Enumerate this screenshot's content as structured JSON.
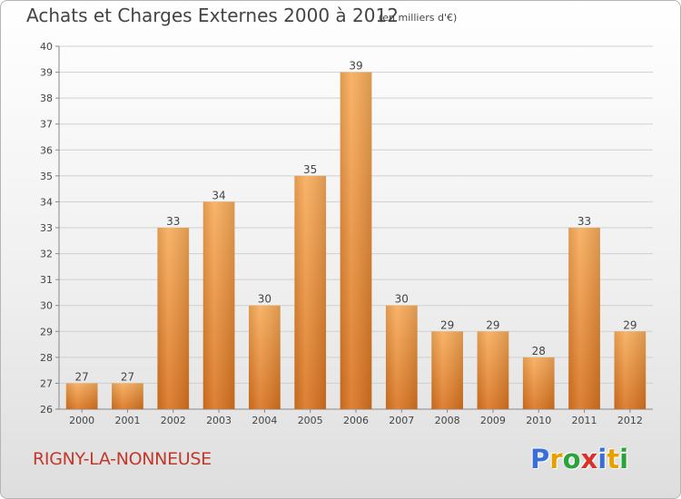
{
  "title": "Achats et Charges Externes 2000 à 2012",
  "subtitle": "(en milliers d'€)",
  "commune": "RIGNY-LA-NONNEUSE",
  "logo": {
    "letters": [
      "P",
      "r",
      "o",
      "x",
      "i",
      "t",
      "i"
    ],
    "colors": [
      "#3a6fd8",
      "#e6a100",
      "#2aa33a",
      "#d8322b",
      "#3a6fd8",
      "#e6a100",
      "#2aa33a"
    ]
  },
  "chart_data": {
    "type": "bar",
    "categories": [
      "2000",
      "2001",
      "2002",
      "2003",
      "2004",
      "2005",
      "2006",
      "2007",
      "2008",
      "2009",
      "2010",
      "2011",
      "2012"
    ],
    "values": [
      27,
      27,
      33,
      34,
      30,
      35,
      39,
      30,
      29,
      29,
      28,
      33,
      29
    ],
    "title": "Achats et Charges Externes 2000 à 2012",
    "subtitle": "(en milliers d'€)",
    "xlabel": "",
    "ylabel": "",
    "ylim": [
      26,
      40
    ],
    "yticks": [
      26,
      27,
      28,
      29,
      30,
      31,
      32,
      33,
      34,
      35,
      36,
      37,
      38,
      39,
      40
    ],
    "grid": true,
    "legend": "none",
    "bar_color": "#f0963a"
  }
}
